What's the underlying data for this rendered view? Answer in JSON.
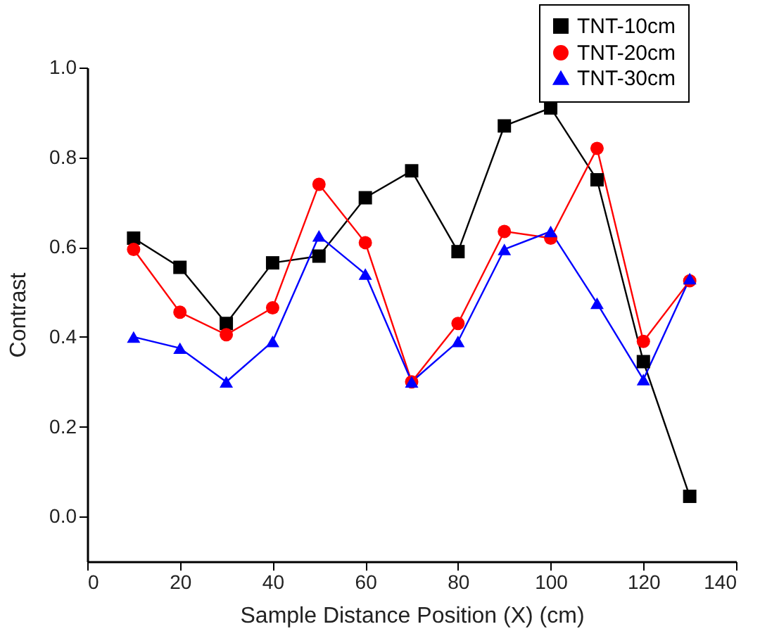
{
  "chart_data": {
    "type": "line",
    "xlabel": "Sample Distance Position (X) (cm)",
    "ylabel": "Contrast",
    "x": [
      10,
      20,
      30,
      40,
      50,
      60,
      70,
      80,
      90,
      100,
      110,
      120,
      130
    ],
    "series": [
      {
        "name": "TNT-10cm",
        "color": "#000000",
        "marker": "square",
        "values": [
          0.62,
          0.555,
          0.43,
          0.565,
          0.58,
          0.71,
          0.77,
          0.59,
          0.87,
          0.91,
          0.75,
          0.345,
          0.045
        ]
      },
      {
        "name": "TNT-20cm",
        "color": "#ff0000",
        "marker": "circle",
        "values": [
          0.595,
          0.455,
          0.405,
          0.465,
          0.74,
          0.61,
          0.3,
          0.43,
          0.635,
          0.62,
          0.82,
          0.39,
          0.525
        ]
      },
      {
        "name": "TNT-30cm",
        "color": "#0000ff",
        "marker": "triangle",
        "values": [
          0.4,
          0.375,
          0.3,
          0.39,
          0.625,
          0.54,
          0.3,
          0.39,
          0.595,
          0.635,
          0.475,
          0.305,
          0.53
        ]
      }
    ],
    "xlim": [
      0,
      140
    ],
    "xticks": [
      0,
      20,
      40,
      60,
      80,
      100,
      120,
      140
    ],
    "ylim": [
      -0.1,
      1.0
    ],
    "yticks": [
      {
        "value": 0,
        "label": "0.0"
      },
      {
        "value": 0.2,
        "label": "0.2"
      },
      {
        "value": 0.4,
        "label": "0.4"
      },
      {
        "value": 0.6,
        "label": "0.6"
      },
      {
        "value": 0.8,
        "label": "0.8"
      },
      {
        "value": 1.0,
        "label": "1.0"
      }
    ],
    "grid": false,
    "legend": "top right",
    "line_style": "solid"
  }
}
